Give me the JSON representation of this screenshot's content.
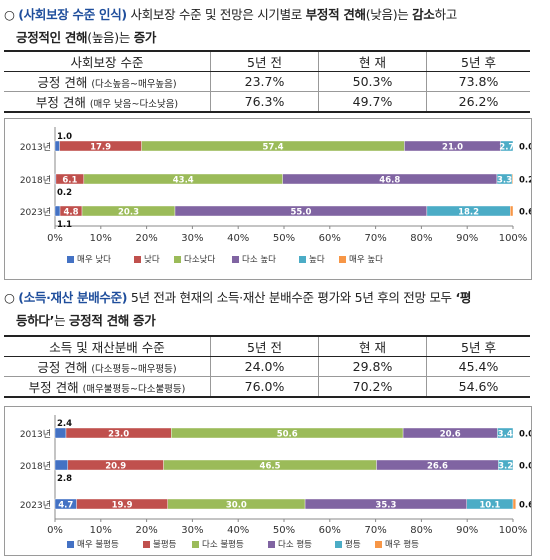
{
  "section1": {
    "bullet": "○",
    "tag": "(사회보장 수준 인식)",
    "text_a": " 사회보장 수준 및 전망은 시기별로 ",
    "bold_a": "부정적 견해",
    "text_b": "(낮음)는 ",
    "bold_b": "감소",
    "text_c": "하고",
    "line2_bold": "긍정적인 견해",
    "line2_text": "(높음)는 ",
    "line2_bold2": "증가"
  },
  "table1": {
    "headers": [
      "사회보장 수준",
      "5년 전",
      "현 재",
      "5년 후"
    ],
    "rows": [
      {
        "label": "긍정 견해",
        "note": "(다소높음~매우높음)",
        "values": [
          "23.7%",
          "50.3%",
          "73.8%"
        ]
      },
      {
        "label": "부정 견해",
        "note": "(매우 낮음~다소낮음)",
        "values": [
          "76.3%",
          "49.7%",
          "26.2%"
        ]
      }
    ]
  },
  "section2": {
    "bullet": "○",
    "tag": "(소득·재산 분배수준)",
    "text_a": " 5년 전과 현재의 소득·재산 분배수준 평가와 5년 후의 전망 모두 ",
    "bold_a": "‘평",
    "line2_bold": "등하다’",
    "line2_text": "는 ",
    "line2_bold2": "긍정적 견해 증가"
  },
  "table2": {
    "headers": [
      "소득 및 재산분배 수준",
      "5년 전",
      "현 재",
      "5년 후"
    ],
    "rows": [
      {
        "label": "긍정 견해",
        "note": "(다소평등~매우평등)",
        "values": [
          "24.0%",
          "29.8%",
          "45.4%"
        ]
      },
      {
        "label": "부정 견해",
        "note": "(매우불평등~다소불평등)",
        "values": [
          "76.0%",
          "70.2%",
          "54.6%"
        ]
      }
    ]
  },
  "chart_data": [
    {
      "type": "bar",
      "orientation": "horizontal",
      "stacked": true,
      "categories": [
        "2013년",
        "2018년",
        "2023년"
      ],
      "xlim": [
        0,
        100
      ],
      "xticks": [
        "0%",
        "10%",
        "20%",
        "30%",
        "40%",
        "50%",
        "60%",
        "70%",
        "80%",
        "90%",
        "100%"
      ],
      "colors": [
        "#4472c4",
        "#c0504d",
        "#9bbb59",
        "#8064a2",
        "#4bacc6",
        "#f79646"
      ],
      "series": [
        {
          "name": "매우 낮다",
          "values": [
            1.0,
            0.2,
            1.1
          ]
        },
        {
          "name": "낮다",
          "values": [
            17.9,
            6.1,
            4.8
          ]
        },
        {
          "name": "다소낮다",
          "values": [
            57.4,
            43.4,
            20.3
          ]
        },
        {
          "name": "다소 높다",
          "values": [
            21.0,
            46.8,
            55.0
          ]
        },
        {
          "name": "높다",
          "values": [
            2.7,
            3.3,
            18.2
          ]
        },
        {
          "name": "매우 높다",
          "values": [
            0.0,
            0.2,
            0.6
          ]
        }
      ],
      "legend": "bottom",
      "grid": false
    },
    {
      "type": "bar",
      "orientation": "horizontal",
      "stacked": true,
      "categories": [
        "2013년",
        "2018년",
        "2023년"
      ],
      "xlim": [
        0,
        100
      ],
      "xticks": [
        "0%",
        "10%",
        "20%",
        "30%",
        "40%",
        "50%",
        "60%",
        "70%",
        "80%",
        "90%",
        "100%"
      ],
      "colors": [
        "#4472c4",
        "#c0504d",
        "#9bbb59",
        "#8064a2",
        "#4bacc6",
        "#f79646"
      ],
      "series": [
        {
          "name": "매우 불평등",
          "values": [
            2.4,
            2.8,
            4.7
          ]
        },
        {
          "name": "불평등",
          "values": [
            23.0,
            20.9,
            19.9
          ]
        },
        {
          "name": "다소 불평등",
          "values": [
            50.6,
            46.5,
            30.0
          ]
        },
        {
          "name": "다소 평등",
          "values": [
            20.6,
            26.6,
            35.3
          ]
        },
        {
          "name": "평등",
          "values": [
            3.4,
            3.2,
            10.1
          ]
        },
        {
          "name": "매우 평등",
          "values": [
            0.0,
            0.0,
            0.6
          ]
        }
      ],
      "legend": "bottom",
      "grid": false
    }
  ]
}
